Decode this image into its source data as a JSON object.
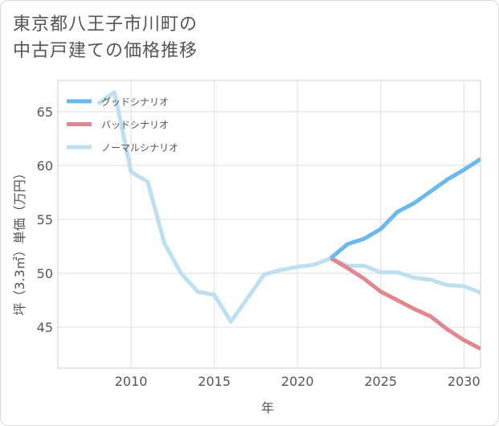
{
  "title": "東京都八王子市川町の\n中古戸建ての価格推移",
  "chart_data": {
    "type": "line",
    "title": "東京都八王子市川町の中古戸建ての価格推移",
    "xlabel": "年",
    "ylabel": "坪（3.3㎡）単価（万円）",
    "xlim": [
      2005.6,
      2031
    ],
    "ylim": [
      41.2,
      67.9
    ],
    "xticks": [
      2010,
      2015,
      2020,
      2025,
      2030
    ],
    "yticks": [
      45,
      50,
      55,
      60,
      65
    ],
    "legend_position": "top-left",
    "series": [
      {
        "name": "グッドシナリオ",
        "color": "#6bb8ea",
        "x": [
          2022,
          2023,
          2024,
          2025,
          2026,
          2027,
          2028,
          2029,
          2030,
          2031
        ],
        "y": [
          51.4,
          52.7,
          53.2,
          54.1,
          55.7,
          56.5,
          57.6,
          58.7,
          59.6,
          60.6
        ]
      },
      {
        "name": "バッドシナリオ",
        "color": "#e0878f",
        "x": [
          2022,
          2023,
          2024,
          2025,
          2026,
          2027,
          2028,
          2029,
          2030,
          2031
        ],
        "y": [
          51.4,
          50.5,
          49.5,
          48.3,
          47.5,
          46.7,
          46.0,
          44.8,
          43.8,
          43.0
        ]
      },
      {
        "name": "ノーマルシナリオ",
        "color": "#bde0ee",
        "x": [
          2008,
          2009,
          2010,
          2011,
          2012,
          2013,
          2014,
          2015,
          2016,
          2017,
          2018,
          2019,
          2020,
          2021,
          2022,
          2023,
          2024,
          2025,
          2026,
          2027,
          2028,
          2029,
          2030,
          2031
        ],
        "y": [
          65.7,
          66.8,
          59.4,
          58.5,
          52.8,
          50.0,
          48.3,
          48.0,
          45.5,
          47.7,
          49.9,
          50.3,
          50.6,
          50.8,
          51.4,
          50.7,
          50.7,
          50.1,
          50.1,
          49.6,
          49.4,
          48.9,
          48.8,
          48.2
        ]
      }
    ]
  }
}
